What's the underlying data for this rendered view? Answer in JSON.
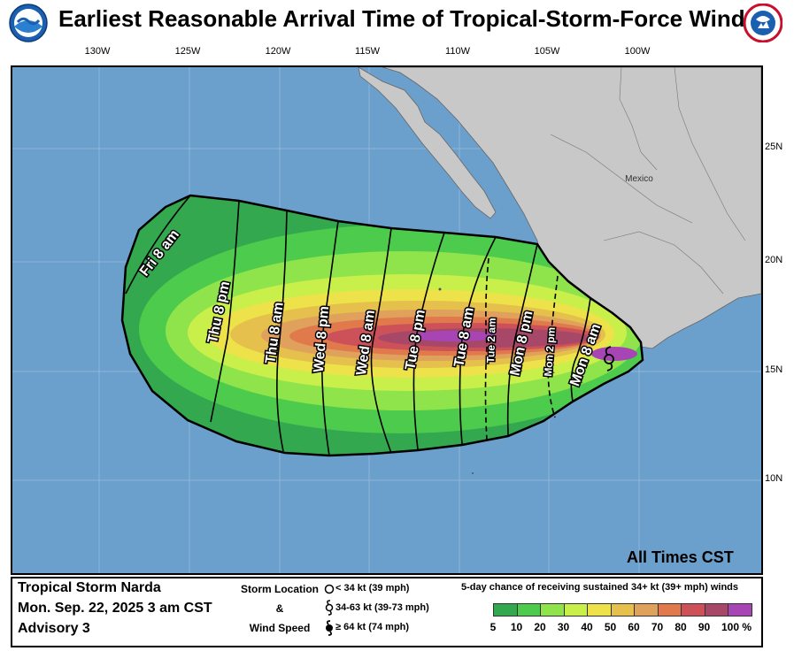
{
  "title": "Earliest Reasonable Arrival Time of Tropical-Storm-Force Winds",
  "logos": {
    "left": "NOAA",
    "right": "NATIONAL WEATHER SERVICE"
  },
  "map": {
    "lon_labels": [
      "130W",
      "125W",
      "120W",
      "115W",
      "110W",
      "105W",
      "100W"
    ],
    "lat_labels": [
      "25N",
      "20N",
      "15N",
      "10N"
    ],
    "place_label": "Mexico",
    "all_times": "All Times CST",
    "time_labels": {
      "fri_8am": "Fri 8 am",
      "thu_8pm": "Thu 8 pm",
      "thu_8am": "Thu 8 am",
      "wed_8pm": "Wed 8 pm",
      "wed_8am": "Wed 8 am",
      "tue_8pm": "Tue 8 pm",
      "tue_8am": "Tue 8 am",
      "tue_2am": "Tue 2 am",
      "mon_8pm": "Mon 8 pm",
      "mon_2pm": "Mon 2 pm",
      "mon_8am": "Mon 8 am"
    },
    "colors": {
      "ocean": "#6b9fcc",
      "land": "#c8c8c8",
      "p5": "#33a84f",
      "p10": "#4ccb4c",
      "p20": "#8ee44a",
      "p30": "#d9f048",
      "p40": "#eee24a",
      "p50": "#e5c04c",
      "p60": "#dfa15c",
      "p70": "#e07a4c",
      "p80": "#cc5158",
      "p90": "#a84868",
      "p100": "#a845b5"
    }
  },
  "legend": {
    "storm_name": "Tropical Storm Narda",
    "storm_date": "Mon. Sep. 22, 2025  3 am CST",
    "advisory": "Advisory 3",
    "location_title_1": "Storm Location",
    "location_title_2": "&",
    "location_title_3": "Wind Speed",
    "loc_items": [
      "< 34 kt (39 mph)",
      "34-63 kt (39-73 mph)",
      "≥ 64 kt (74 mph)"
    ],
    "chance_title": "5-day chance of receiving sustained 34+ kt (39+ mph) winds",
    "chance_levels": [
      "5",
      "10",
      "20",
      "30",
      "40",
      "50",
      "60",
      "70",
      "80",
      "90",
      "100 %"
    ],
    "chance_colors": [
      "#33a84f",
      "#4ccb4c",
      "#8ee44a",
      "#c9ef4a",
      "#eee24a",
      "#e5c04c",
      "#dfa15c",
      "#e07a4c",
      "#cc5158",
      "#a84868",
      "#a845b5"
    ]
  }
}
